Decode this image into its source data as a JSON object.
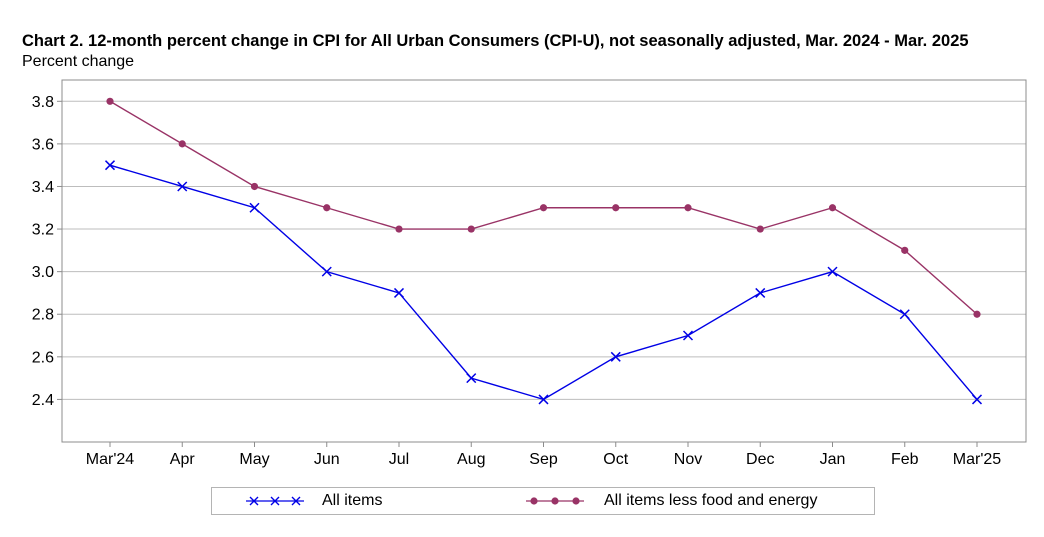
{
  "chart_data": {
    "type": "line",
    "title": "Chart 2. 12-month percent change in CPI for All Urban Consumers (CPI-U), not seasonally adjusted, Mar. 2024 - Mar. 2025",
    "subtitle": "Percent change",
    "xlabel": "",
    "ylabel": "",
    "categories": [
      "Mar'24",
      "Apr",
      "May",
      "Jun",
      "Jul",
      "Aug",
      "Sep",
      "Oct",
      "Nov",
      "Dec",
      "Jan",
      "Feb",
      "Mar'25"
    ],
    "ylim": [
      2.2,
      3.9
    ],
    "yticks": [
      "2.4",
      "2.6",
      "2.8",
      "3.0",
      "3.2",
      "3.4",
      "3.6",
      "3.8"
    ],
    "grid": true,
    "legend_position": "bottom",
    "series": [
      {
        "name": "All items",
        "color": "#0000e6",
        "marker": "x",
        "values": [
          3.5,
          3.4,
          3.3,
          3.0,
          2.9,
          2.5,
          2.4,
          2.6,
          2.7,
          2.9,
          3.0,
          2.8,
          2.4
        ]
      },
      {
        "name": "All items less food and energy",
        "color": "#993366",
        "marker": "circle",
        "values": [
          3.8,
          3.6,
          3.4,
          3.3,
          3.2,
          3.2,
          3.3,
          3.3,
          3.3,
          3.2,
          3.3,
          3.1,
          2.8
        ]
      }
    ]
  }
}
